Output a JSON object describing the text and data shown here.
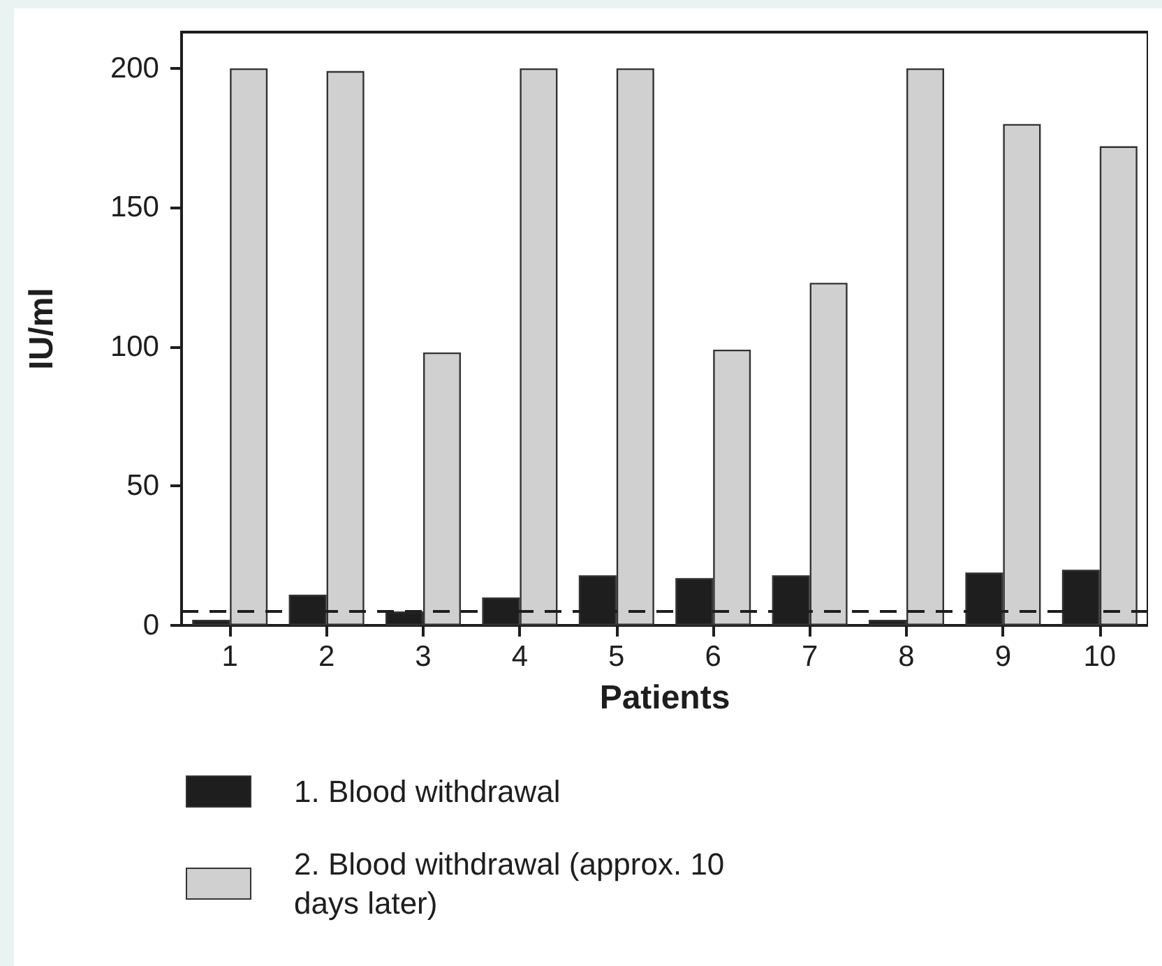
{
  "chart_data": {
    "type": "bar",
    "xlabel": "Patients",
    "ylabel": "IU/ml",
    "categories": [
      "1",
      "2",
      "3",
      "4",
      "5",
      "6",
      "7",
      "8",
      "9",
      "10"
    ],
    "series": [
      {
        "name": "1. Blood withdrawal",
        "color": "#1e1e1e",
        "values": [
          2,
          11,
          5,
          10,
          18,
          17,
          18,
          2,
          19,
          20
        ]
      },
      {
        "name": "2. Blood withdrawal (approx. 10 days later)",
        "color": "#d0d0d0",
        "values": [
          200,
          199,
          98,
          200,
          200,
          99,
          123,
          200,
          180,
          172
        ]
      }
    ],
    "ylim": [
      0,
      213
    ],
    "yticks": [
      0,
      50,
      100,
      150,
      200
    ],
    "ref_lines": [
      {
        "axis": "y",
        "value": 5,
        "color": "#1e1e1e",
        "line_style": "dashed"
      }
    ],
    "grid": false,
    "legend": "bottom left"
  }
}
